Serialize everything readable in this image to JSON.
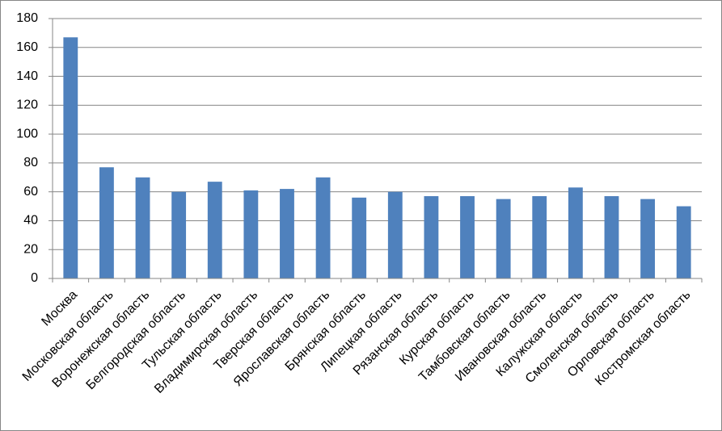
{
  "chart_data": {
    "type": "bar",
    "categories": [
      "Москва",
      "Московская область",
      "Воронежская область",
      "Белгородская область",
      "Тульская область",
      "Владимирская область",
      "Тверская область",
      "Ярославская область",
      "Брянская область",
      "Липецкая область",
      "Рязанская область",
      "Курская область",
      "Тамбовская область",
      "Ивановская область",
      "Калужская область",
      "Смоленская область",
      "Орловская область",
      "Костромская область"
    ],
    "values": [
      167,
      77,
      70,
      60,
      67,
      61,
      62,
      70,
      56,
      60,
      57,
      57,
      55,
      57,
      63,
      57,
      55,
      50
    ],
    "color": "#4f81bd",
    "ylim": [
      0,
      180
    ],
    "yticks": [
      0,
      20,
      40,
      60,
      80,
      100,
      120,
      140,
      160,
      180
    ],
    "grid": true
  }
}
